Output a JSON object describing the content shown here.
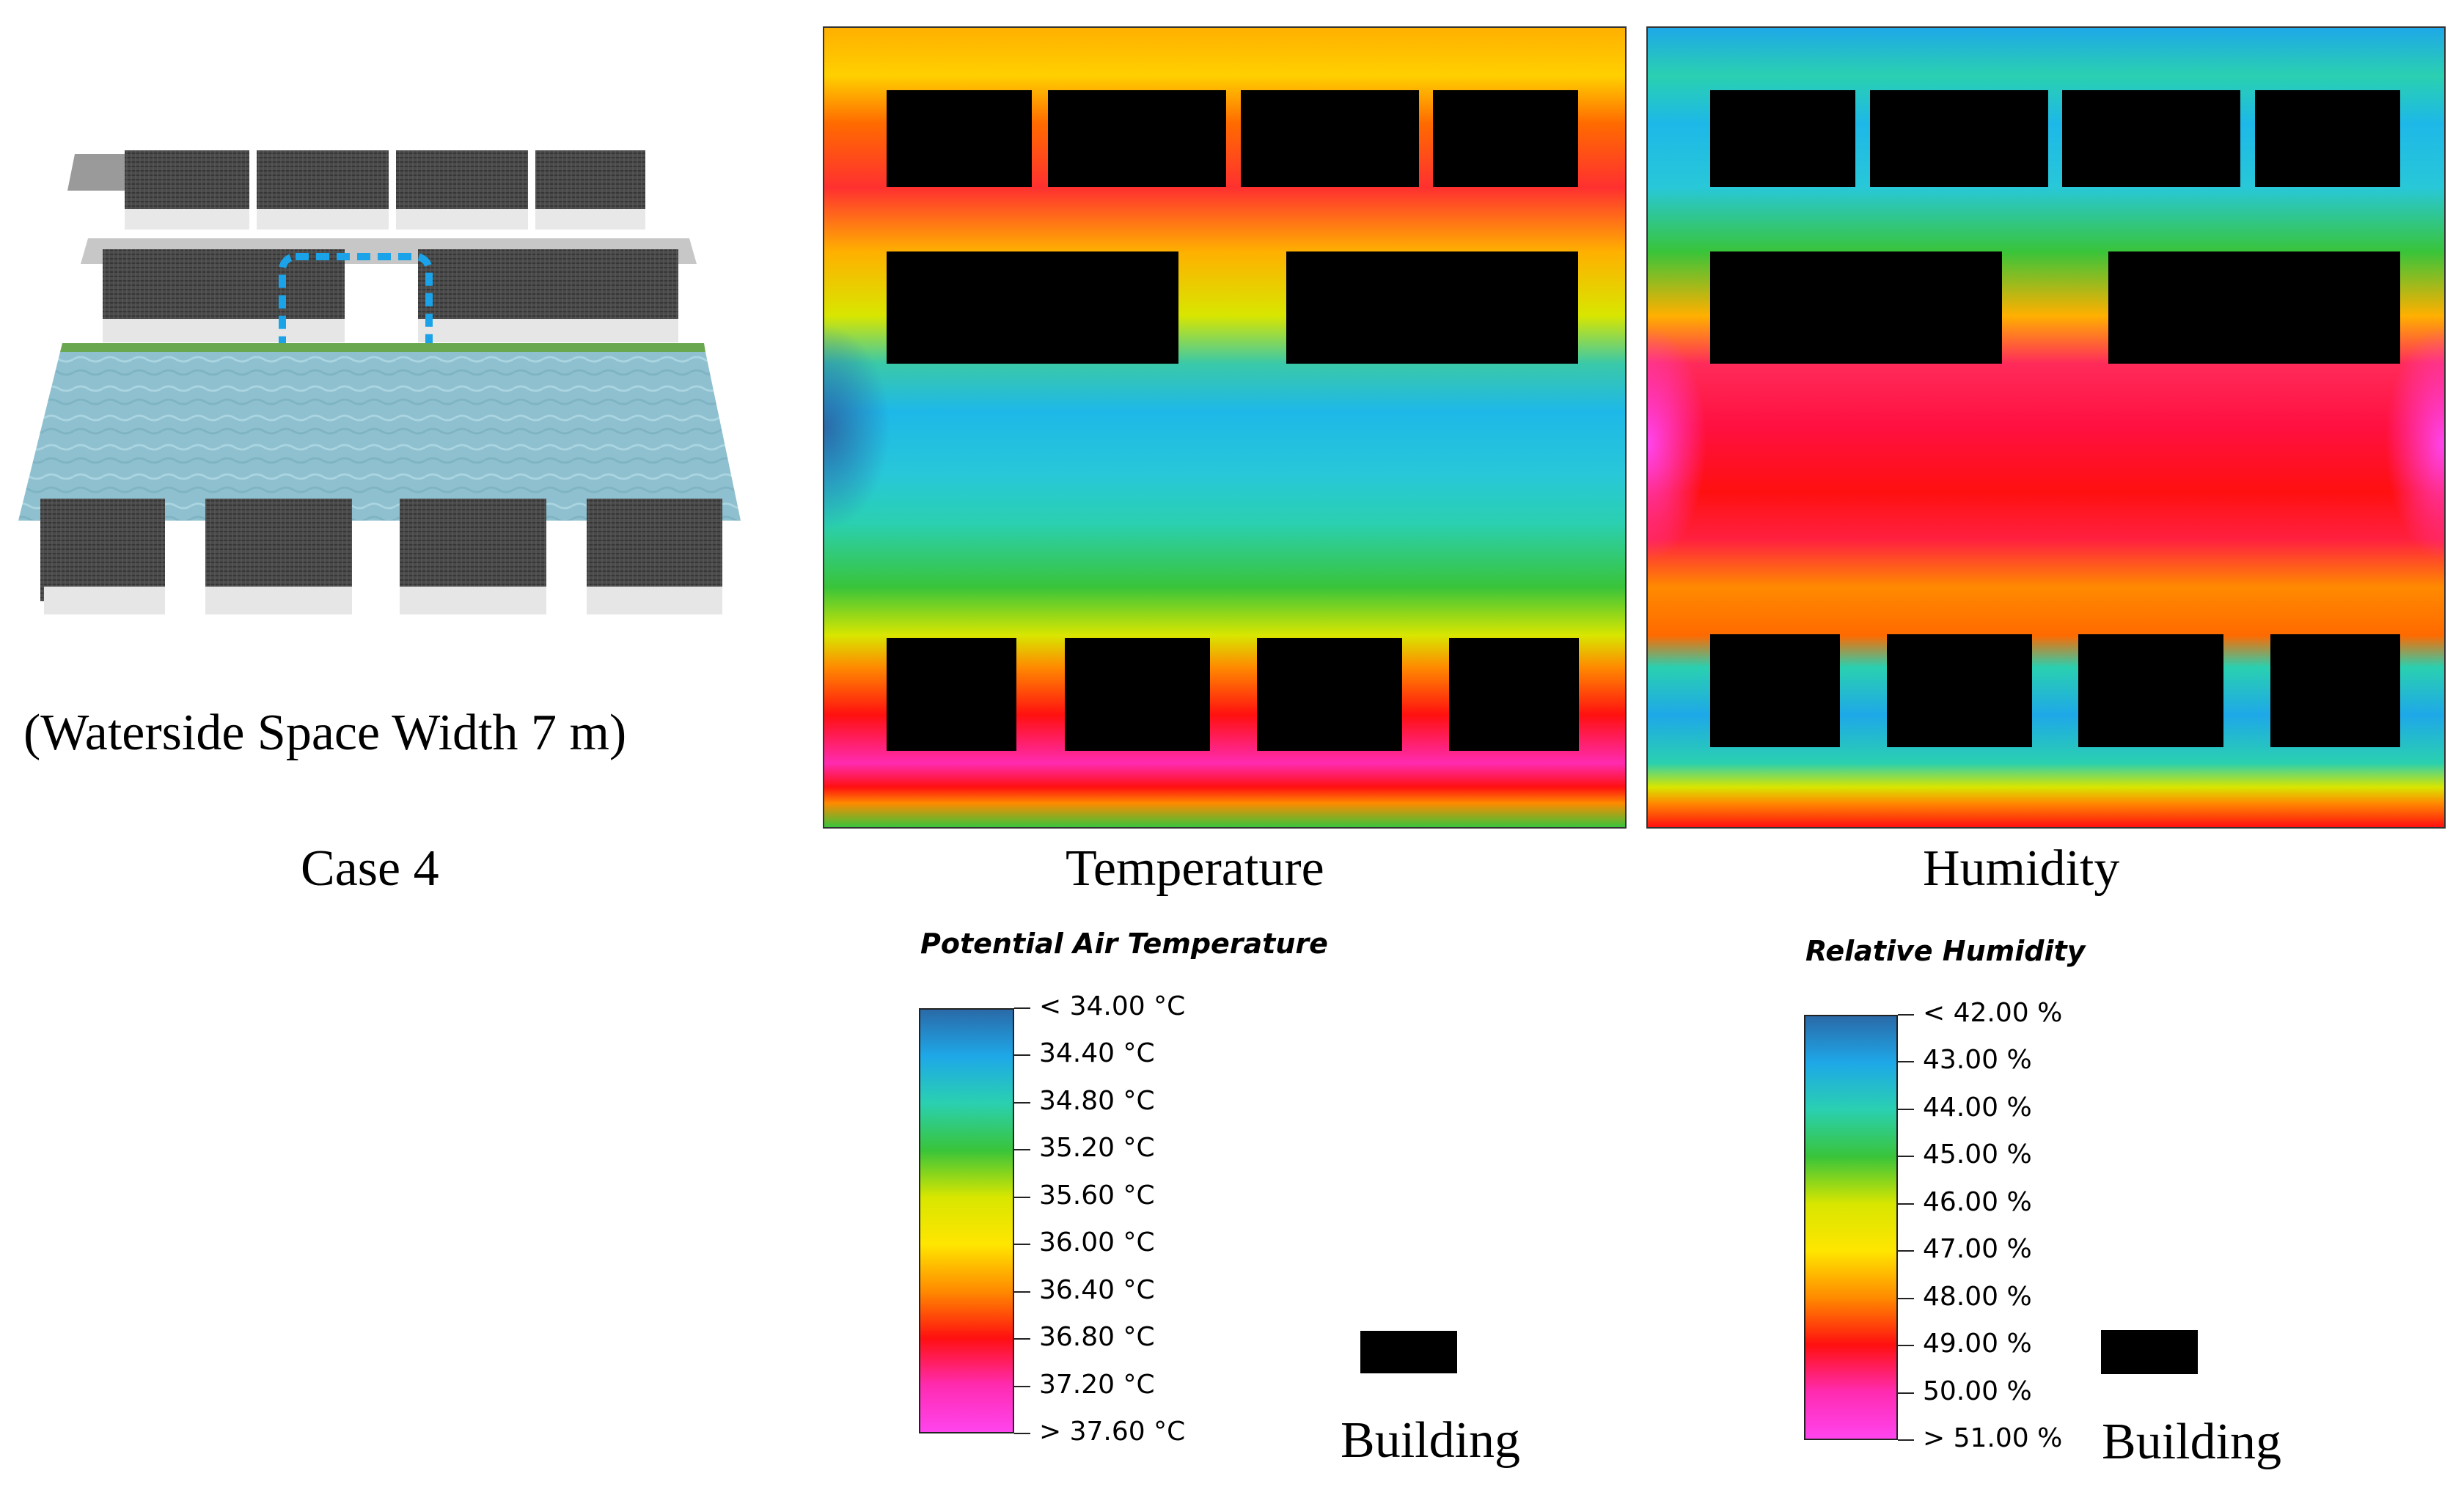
{
  "scene": {
    "caption": "(Waterside Space Width 7 m)",
    "case_label": "Case 4",
    "icons": [
      "rooftop-building-icon",
      "river-water-icon",
      "dashed-selection-highlight"
    ],
    "colors": {
      "water": "#8fc0cf",
      "roof": "#4a4a4a",
      "highlight": "#1aa3e8",
      "grass": "#6aa84f"
    }
  },
  "panels": {
    "temperature": {
      "label": "Temperature"
    },
    "humidity": {
      "label": "Humidity"
    }
  },
  "legends": {
    "temperature": {
      "title": "Potential Air Temperature",
      "ticks": [
        "< 34.00 °C",
        "34.40  °C",
        "34.80  °C",
        "35.20  °C",
        "35.60  °C",
        "36.00  °C",
        "36.40  °C",
        "36.80  °C",
        "37.20  °C",
        "> 37.60 °C"
      ],
      "colors": [
        "#2a6aa8",
        "#1ea8e8",
        "#2ad0b0",
        "#39c43a",
        "#d8e600",
        "#ffe600",
        "#ff8a00",
        "#ff1010",
        "#ff2bb0",
        "#ff44ee"
      ]
    },
    "humidity": {
      "title": "Relative Humidity",
      "ticks": [
        "< 42.00 %",
        "43.00  %",
        "44.00  %",
        "45.00  %",
        "46.00  %",
        "47.00  %",
        "48.00  %",
        "49.00  %",
        "50.00  %",
        "> 51.00 %"
      ],
      "colors": [
        "#2a6aa8",
        "#1ea8e8",
        "#2ad0b0",
        "#39c43a",
        "#d8e600",
        "#ffe600",
        "#ff8a00",
        "#ff1010",
        "#ff2bb0",
        "#ff44ee"
      ]
    },
    "building_label": "Building",
    "building_color": "#000000"
  }
}
